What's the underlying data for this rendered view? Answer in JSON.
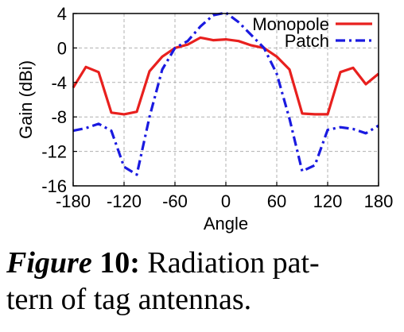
{
  "chart_data": {
    "type": "line",
    "title": "",
    "xlabel": "Angle",
    "ylabel": "Gain (dBi)",
    "xlim": [
      -180,
      180
    ],
    "ylim": [
      -16,
      4
    ],
    "xticks": [
      -180,
      -120,
      -60,
      0,
      60,
      120,
      180
    ],
    "yticks": [
      4,
      0,
      -4,
      -8,
      -12,
      -16
    ],
    "grid": true,
    "legend_position": "top-right",
    "series": [
      {
        "name": "Monopole",
        "color": "#e8201e",
        "style": "solid",
        "x": [
          -180,
          -165,
          -150,
          -135,
          -120,
          -105,
          -90,
          -75,
          -60,
          -45,
          -30,
          -15,
          0,
          15,
          30,
          45,
          60,
          75,
          90,
          105,
          120,
          135,
          150,
          165,
          180
        ],
        "y": [
          -4.6,
          -2.2,
          -2.8,
          -7.5,
          -7.7,
          -7.4,
          -2.7,
          -1.0,
          0.0,
          0.4,
          1.2,
          0.9,
          1.0,
          0.8,
          0.3,
          0.0,
          -1.0,
          -2.5,
          -7.6,
          -7.7,
          -7.7,
          -2.8,
          -2.3,
          -4.2,
          -3.0
        ]
      },
      {
        "name": "Patch",
        "color": "#1a1ae0",
        "style": "dashdot",
        "x": [
          -180,
          -165,
          -150,
          -135,
          -120,
          -105,
          -90,
          -75,
          -60,
          -45,
          -30,
          -15,
          0,
          15,
          30,
          45,
          60,
          75,
          90,
          105,
          120,
          135,
          150,
          165,
          180
        ],
        "y": [
          -9.6,
          -9.3,
          -8.8,
          -9.6,
          -13.8,
          -14.7,
          -8.0,
          -2.5,
          0.0,
          0.8,
          2.5,
          3.8,
          4.1,
          3.0,
          1.5,
          0.0,
          -3.0,
          -8.2,
          -14.3,
          -13.6,
          -9.5,
          -9.2,
          -9.4,
          -9.9,
          -9.0
        ]
      }
    ]
  },
  "caption": {
    "fig": "Figure",
    "num": "10:",
    "line1_rest": "Radiation pat-",
    "line2": "tern of tag antennas."
  }
}
